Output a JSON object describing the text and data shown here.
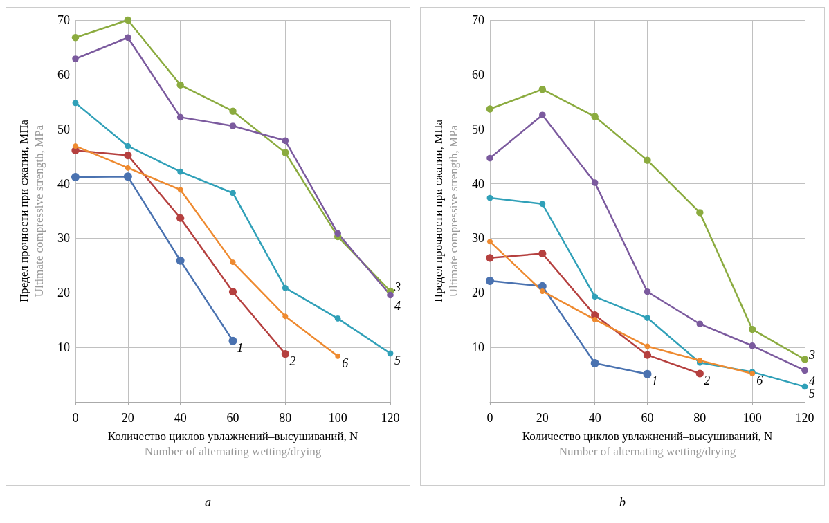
{
  "chart_data": [
    {
      "type": "line",
      "title": "a",
      "xlabel": "Количество циклов увлажнений–высушиваний, N\nNumber of alternating wetting/drying",
      "ylabel": "Предел прочности при сжатии, МПа\nUltimate compressive strength, MPa",
      "x": [
        0,
        20,
        40,
        60,
        80,
        100,
        120
      ],
      "xlim": [
        0,
        120
      ],
      "xticks": [
        0,
        20,
        40,
        60,
        80,
        100,
        120
      ],
      "ylim": [
        0,
        70
      ],
      "yticks": [
        10,
        20,
        30,
        40,
        50,
        60,
        70
      ],
      "grid": true,
      "marker": "circle",
      "series": [
        {
          "name": "1",
          "color": "#4a72b0",
          "values": [
            41.2,
            41.3,
            25.9,
            11.2,
            null,
            null,
            null
          ]
        },
        {
          "name": "2",
          "color": "#b5403f",
          "values": [
            46.1,
            45.2,
            33.7,
            20.2,
            8.8,
            null,
            null
          ]
        },
        {
          "name": "3",
          "color": "#8bab3f",
          "values": [
            66.8,
            70,
            58.1,
            53.3,
            45.7,
            30.3,
            20.3
          ]
        },
        {
          "name": "4",
          "color": "#7b5a9e",
          "values": [
            62.9,
            66.8,
            52.2,
            50.6,
            47.9,
            30.9,
            19.6
          ]
        },
        {
          "name": "5",
          "color": "#30a0b8",
          "values": [
            54.8,
            46.9,
            42.2,
            38.3,
            20.9,
            15.3,
            8.9
          ]
        },
        {
          "name": "6",
          "color": "#ee8a30",
          "values": [
            46.9,
            42.9,
            38.9,
            25.6,
            15.7,
            8.4,
            null
          ]
        }
      ]
    },
    {
      "type": "line",
      "title": "b",
      "xlabel": "Количество циклов увлажнений–высушиваний, N\nNumber of alternating wetting/drying",
      "ylabel": "Предел прочности при сжатии, МПа\nUltimate compressive strength, MPa",
      "x": [
        0,
        20,
        40,
        60,
        80,
        100,
        120
      ],
      "xlim": [
        0,
        120
      ],
      "xticks": [
        0,
        20,
        40,
        60,
        80,
        100,
        120
      ],
      "ylim": [
        0,
        70
      ],
      "yticks": [
        10,
        20,
        30,
        40,
        50,
        60,
        70
      ],
      "grid": true,
      "marker": "circle",
      "series": [
        {
          "name": "1",
          "color": "#4a72b0",
          "values": [
            22.2,
            21.2,
            7.1,
            5.1,
            null,
            null,
            null
          ]
        },
        {
          "name": "2",
          "color": "#b5403f",
          "values": [
            26.4,
            27.2,
            15.9,
            8.6,
            5.2,
            null,
            null
          ]
        },
        {
          "name": "3",
          "color": "#8bab3f",
          "values": [
            53.7,
            57.3,
            52.3,
            44.3,
            34.7,
            13.3,
            7.8
          ]
        },
        {
          "name": "4",
          "color": "#7b5a9e",
          "values": [
            44.7,
            52.6,
            40.2,
            20.2,
            14.3,
            10.3,
            5.8
          ]
        },
        {
          "name": "5",
          "color": "#30a0b8",
          "values": [
            37.4,
            36.3,
            19.3,
            15.4,
            7.2,
            5.5,
            2.8
          ]
        },
        {
          "name": "6",
          "color": "#ee8a30",
          "values": [
            29.4,
            20.3,
            15.1,
            10.2,
            7.6,
            5.2,
            null
          ]
        }
      ]
    }
  ]
}
